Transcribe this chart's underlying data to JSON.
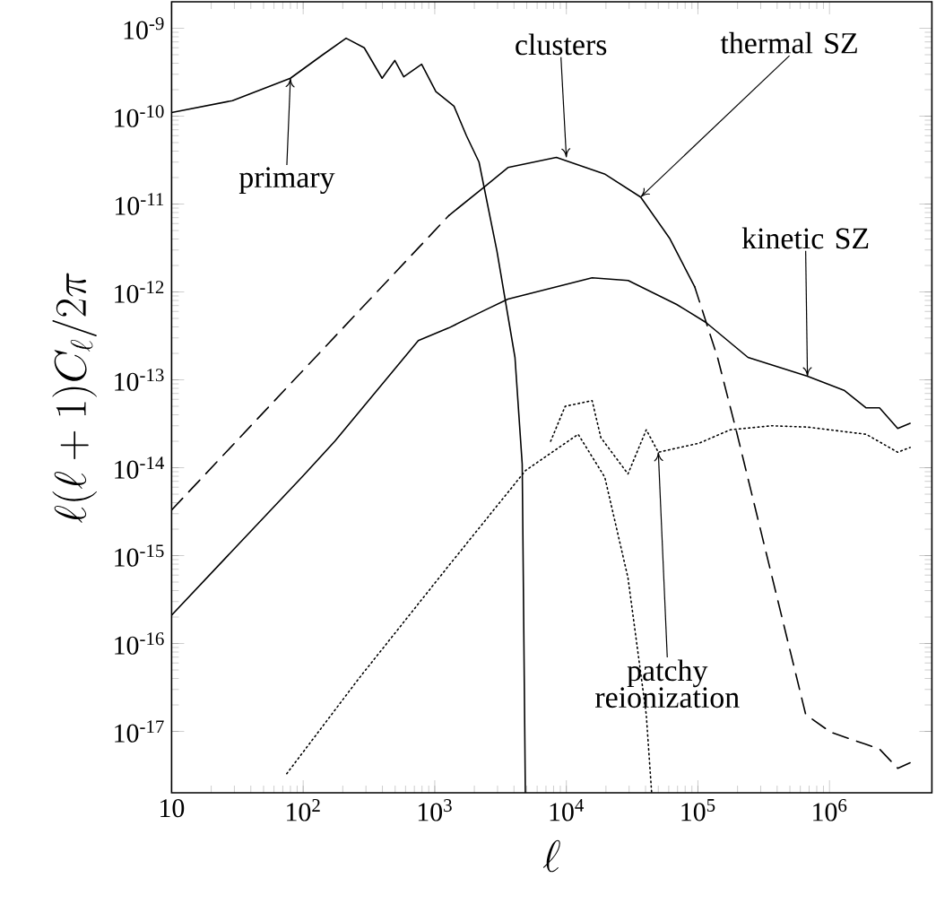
{
  "chart_data": {
    "type": "line",
    "xlabel": "\\ell",
    "ylabel": "\\ell(\\ell+1)C_\\ell/2\\pi",
    "log": "xy",
    "xlim": [
      10,
      6000000
    ],
    "ylim": [
      2e-18,
      2e-09
    ],
    "xticks": [
      10,
      {
        "value": 100,
        "label": "10$^{2}$"
      },
      {
        "value": 1000,
        "label": "10$^{3}$"
      },
      {
        "value": 10000,
        "label": "10$^{4}$"
      },
      {
        "value": 100000,
        "label": "10$^{5}$"
      },
      {
        "value": 1000000,
        "label": "10$^{6}$"
      }
    ],
    "yticks": [
      {
        "value": 1e-17,
        "label": "10$^{-17}$"
      },
      {
        "value": 1e-16,
        "label": "10$^{-16}$"
      },
      {
        "value": 1e-15,
        "label": "10$^{-15}$"
      },
      {
        "value": 1e-14,
        "label": "10$^{-14}$"
      },
      {
        "value": 1e-13,
        "label": "10$^{-13}$"
      },
      {
        "value": 1e-12,
        "label": "10$^{-12}$"
      },
      {
        "value": 1e-11,
        "label": "10$^{-11}$"
      },
      {
        "value": 1e-10,
        "label": "10$^{-10}$"
      },
      {
        "value": 1e-09,
        "label": "10$^{-9}$"
      }
    ],
    "series": [
      {
        "color": "#000000",
        "line_style": "solid",
        "x": [
          10,
          29,
          80,
          141,
          212,
          291,
          398,
          497,
          581,
          795,
          1020,
          1400,
          1740,
          2170,
          2970,
          4070,
          4620,
          4880
        ],
        "values": [
          1.1e-10,
          1.5e-10,
          2.7e-10,
          5e-10,
          7.7e-10,
          6e-10,
          2.7e-10,
          4.3e-10,
          2.8e-10,
          3.9e-10,
          1.9e-10,
          1.3e-10,
          6e-11,
          3e-11,
          2.9e-12,
          1.8e-13,
          1.1e-14,
          2e-18
        ]
      },
      {
        "color": "#000000",
        "line_style": "dashed",
        "x": [
          10,
          1280
        ],
        "values": [
          3.3e-15,
          7.4e-12
        ]
      },
      {
        "color": "#000000",
        "line_style": "solid",
        "x": [
          1280,
          2420,
          3600,
          8400,
          19500,
          36700,
          60800,
          94400
        ],
        "values": [
          7.4e-12,
          1.6e-11,
          2.6e-11,
          3.4e-11,
          2.2e-11,
          1.2e-11,
          4.1e-12,
          1.15e-12
        ]
      },
      {
        "color": "#000000",
        "line_style": "dashed",
        "x": [
          94400,
          141000,
          195000,
          660000,
          1020000,
          1900000,
          2400000,
          3300000,
          4100000
        ],
        "values": [
          1.15e-12,
          1.8e-13,
          2.7e-14,
          1.55e-17,
          9.8e-18,
          7.1e-18,
          6.3e-18,
          3.8e-18,
          4.4e-18
        ]
      },
      {
        "color": "#000000",
        "line_style": "solid",
        "x": [
          10,
          100,
          174,
          750,
          1280,
          2400,
          3600,
          15700,
          29500,
          69000,
          115000,
          240000,
          680000,
          1290000,
          1900000,
          2400000,
          3300000,
          4100000
        ],
        "values": [
          2.1e-16,
          8.1e-15,
          2e-14,
          2.8e-13,
          3.9e-13,
          6.2e-13,
          8.3e-13,
          1.45e-12,
          1.35e-12,
          7.2e-13,
          4.5e-13,
          1.8e-13,
          1.1e-13,
          7.6e-14,
          4.8e-14,
          4.8e-14,
          2.8e-14,
          3.2e-14
        ]
      },
      {
        "color": "#000000",
        "line_style": "dotted",
        "x": [
          75,
          265,
          1270,
          4900,
          12300,
          19600,
          29400,
          40500,
          44500
        ],
        "values": [
          3.3e-18,
          4e-17,
          7.6e-16,
          9.3e-15,
          2.4e-14,
          7.8e-15,
          5.6e-16,
          1.55e-17,
          2e-18
        ]
      },
      {
        "color": "#000000",
        "line_style": "dotted",
        "x": [
          7600,
          9800,
          15700,
          18300,
          29400,
          40500,
          50000,
          102000,
          176000,
          365000,
          680000,
          1900000,
          3300000,
          4100000
        ],
        "values": [
          2e-14,
          5e-14,
          5.8e-14,
          2.2e-14,
          8.5e-15,
          2.7e-14,
          1.5e-14,
          1.9e-14,
          2.7e-14,
          3e-14,
          2.9e-14,
          2.4e-14,
          1.5e-14,
          1.7e-14
        ]
      }
    ],
    "annotations": [
      {
        "text": "primary",
        "x": 80,
        "y": 2.7e-10
      },
      {
        "text": "clusters",
        "x": 10000,
        "y": 3.4e-11
      },
      {
        "text": "thermal SZ",
        "x": 36700,
        "y": 1.2e-11
      },
      {
        "text": "kinetic SZ",
        "x": 680000,
        "y": 1.1e-13
      },
      {
        "text": "patchy reionization",
        "x": 50000,
        "y": 1.5e-14
      }
    ]
  }
}
